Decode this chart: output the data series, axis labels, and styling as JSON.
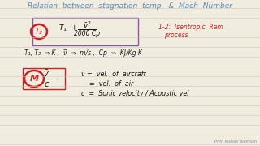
{
  "background_color": "#f0ece0",
  "line_color": "#d0c8b0",
  "title": "Relation  between  stagnation  temp.  &  Mach  Number",
  "title_color": "#5588bb",
  "title_fontsize": 6.5,
  "box1_color": "#8855aa",
  "circle1_color": "#cc2222",
  "circle1_label": "T₂",
  "note_line1": "1-2:  Isentropic  Ram",
  "note_line2": "process",
  "note_color": "#cc2222",
  "units_line": "T₁, T₂  ⇒ K ,  ν̅  ⇒  m/s ,  Cp  ⇒  KJ/Kg K",
  "units_color": "#222222",
  "circle2_label": "M",
  "circle2_color": "#cc2222",
  "vdef1": "ν̅ =  vel.  of  aircraft",
  "vdef2": "    =  vel.  of  air",
  "cdef": "c  =  Sonic velocity / Acoustic vel",
  "defs_color": "#111111",
  "author": "Prof. Rishab Niemush",
  "author_color": "#888888",
  "figwidth": 3.2,
  "figheight": 1.8,
  "dpi": 100
}
